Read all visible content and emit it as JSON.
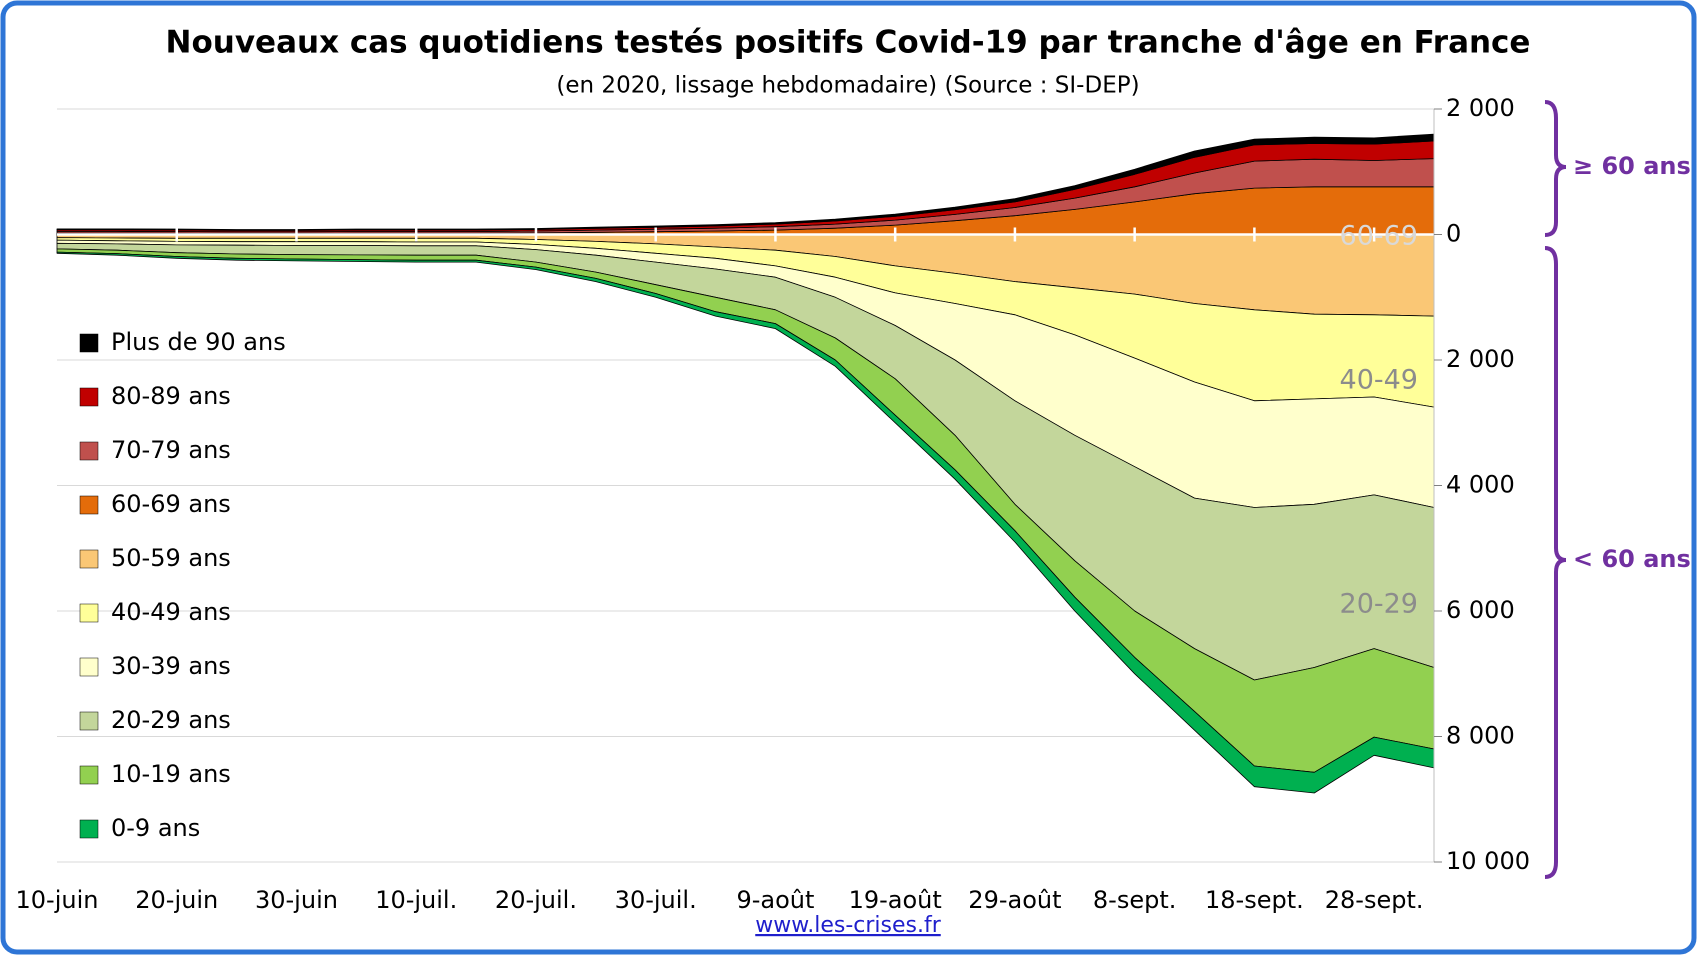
{
  "chart_data": {
    "type": "area",
    "title": "Nouveaux cas quotidiens testés positifs Covid-19 par tranche d'âge en France",
    "subtitle": "(en 2020, lissage hebdomadaire) (Source : SI-DEP)",
    "categories": [
      "10-juin",
      null,
      "20-juin",
      null,
      "30-juin",
      null,
      "10-juil.",
      null,
      "20-juil.",
      null,
      "30-juil.",
      null,
      "9-août",
      null,
      "19-août",
      null,
      "29-août",
      null,
      "8-sept.",
      null,
      "18-sept.",
      null,
      "28-sept.",
      null
    ],
    "series": [
      {
        "name": "Plus de 90 ans",
        "color": "#000000",
        "values": [
          15,
          15,
          15,
          14,
          14,
          15,
          15,
          15,
          15,
          18,
          20,
          22,
          25,
          30,
          35,
          40,
          50,
          60,
          80,
          100,
          90,
          100,
          100,
          110
        ]
      },
      {
        "name": "80-89 ans",
        "color": "#c00000",
        "values": [
          25,
          25,
          24,
          22,
          22,
          24,
          24,
          24,
          25,
          28,
          30,
          35,
          40,
          50,
          60,
          75,
          90,
          140,
          200,
          250,
          260,
          250,
          260,
          280
        ]
      },
      {
        "name": "70-79 ans",
        "color": "#c0504d",
        "values": [
          30,
          30,
          28,
          25,
          25,
          28,
          28,
          28,
          30,
          35,
          40,
          45,
          55,
          65,
          80,
          100,
          130,
          180,
          240,
          330,
          430,
          440,
          420,
          450
        ]
      },
      {
        "name": "60-69 ans",
        "color": "#e46c0a",
        "values": [
          20,
          20,
          20,
          18,
          18,
          20,
          20,
          20,
          25,
          35,
          45,
          55,
          70,
          100,
          150,
          220,
          300,
          400,
          520,
          650,
          740,
          760,
          760,
          760
        ]
      },
      {
        "name": "50-59 ans",
        "color": "#fac775",
        "values": [
          -50,
          -55,
          -60,
          -60,
          -60,
          -60,
          -60,
          -60,
          -80,
          -110,
          -150,
          -200,
          -250,
          -350,
          -500,
          -620,
          -750,
          -850,
          -950,
          -1100,
          -1200,
          -1270,
          -1280,
          -1300
        ]
      },
      {
        "name": "40-49 ans",
        "color": "#ffff99",
        "values": [
          -40,
          -45,
          -50,
          -55,
          -55,
          -55,
          -60,
          -60,
          -80,
          -110,
          -150,
          -180,
          -250,
          -330,
          -430,
          -480,
          -530,
          -750,
          -1020,
          -1250,
          -1450,
          -1350,
          -1310,
          -1450
        ]
      },
      {
        "name": "30-39 ans",
        "color": "#ffffcc",
        "values": [
          -50,
          -50,
          -55,
          -55,
          -60,
          -60,
          -60,
          -60,
          -80,
          -110,
          -140,
          -170,
          -180,
          -320,
          -520,
          -900,
          -1370,
          -1600,
          -1730,
          -1850,
          -1700,
          -1680,
          -1560,
          -1600
        ]
      },
      {
        "name": "20-29 ans",
        "color": "#c3d69b",
        "values": [
          -90,
          -100,
          -125,
          -140,
          -145,
          -150,
          -150,
          -150,
          -200,
          -270,
          -360,
          -450,
          -520,
          -650,
          -850,
          -1200,
          -1650,
          -2000,
          -2300,
          -2400,
          -2750,
          -2600,
          -2450,
          -2550
        ]
      },
      {
        "name": "10-19 ans",
        "color": "#92d050",
        "values": [
          -50,
          -55,
          -60,
          -70,
          -70,
          -75,
          -80,
          -80,
          -80,
          -100,
          -140,
          -230,
          -220,
          -350,
          -580,
          -550,
          -420,
          -580,
          -740,
          -1000,
          -1370,
          -1670,
          -1410,
          -1300
        ]
      },
      {
        "name": "0-9 ans",
        "color": "#00b050",
        "values": [
          -20,
          -25,
          -30,
          -30,
          -30,
          -30,
          -30,
          -30,
          -40,
          -50,
          -60,
          -70,
          -80,
          -100,
          -120,
          -150,
          -180,
          -220,
          -260,
          -300,
          -330,
          -330,
          -290,
          -300
        ]
      }
    ],
    "ylim": [
      -10000,
      2000
    ],
    "yticks": [
      {
        "value": 2000,
        "label": "2 000"
      },
      0,
      {
        "value": -2000,
        "label": "2 000"
      },
      {
        "value": -4000,
        "label": "4 000"
      },
      {
        "value": -6000,
        "label": "6 000"
      },
      {
        "value": -8000,
        "label": "8 000"
      },
      {
        "value": -10000,
        "label": "10 000"
      }
    ],
    "grid": true,
    "legend": "left",
    "annotations": [
      "60-69",
      "40-49",
      "20-29"
    ],
    "group_labels": [
      "≥ 60 ans",
      "< 60 ans"
    ],
    "source": "www.les-crises.fr"
  }
}
